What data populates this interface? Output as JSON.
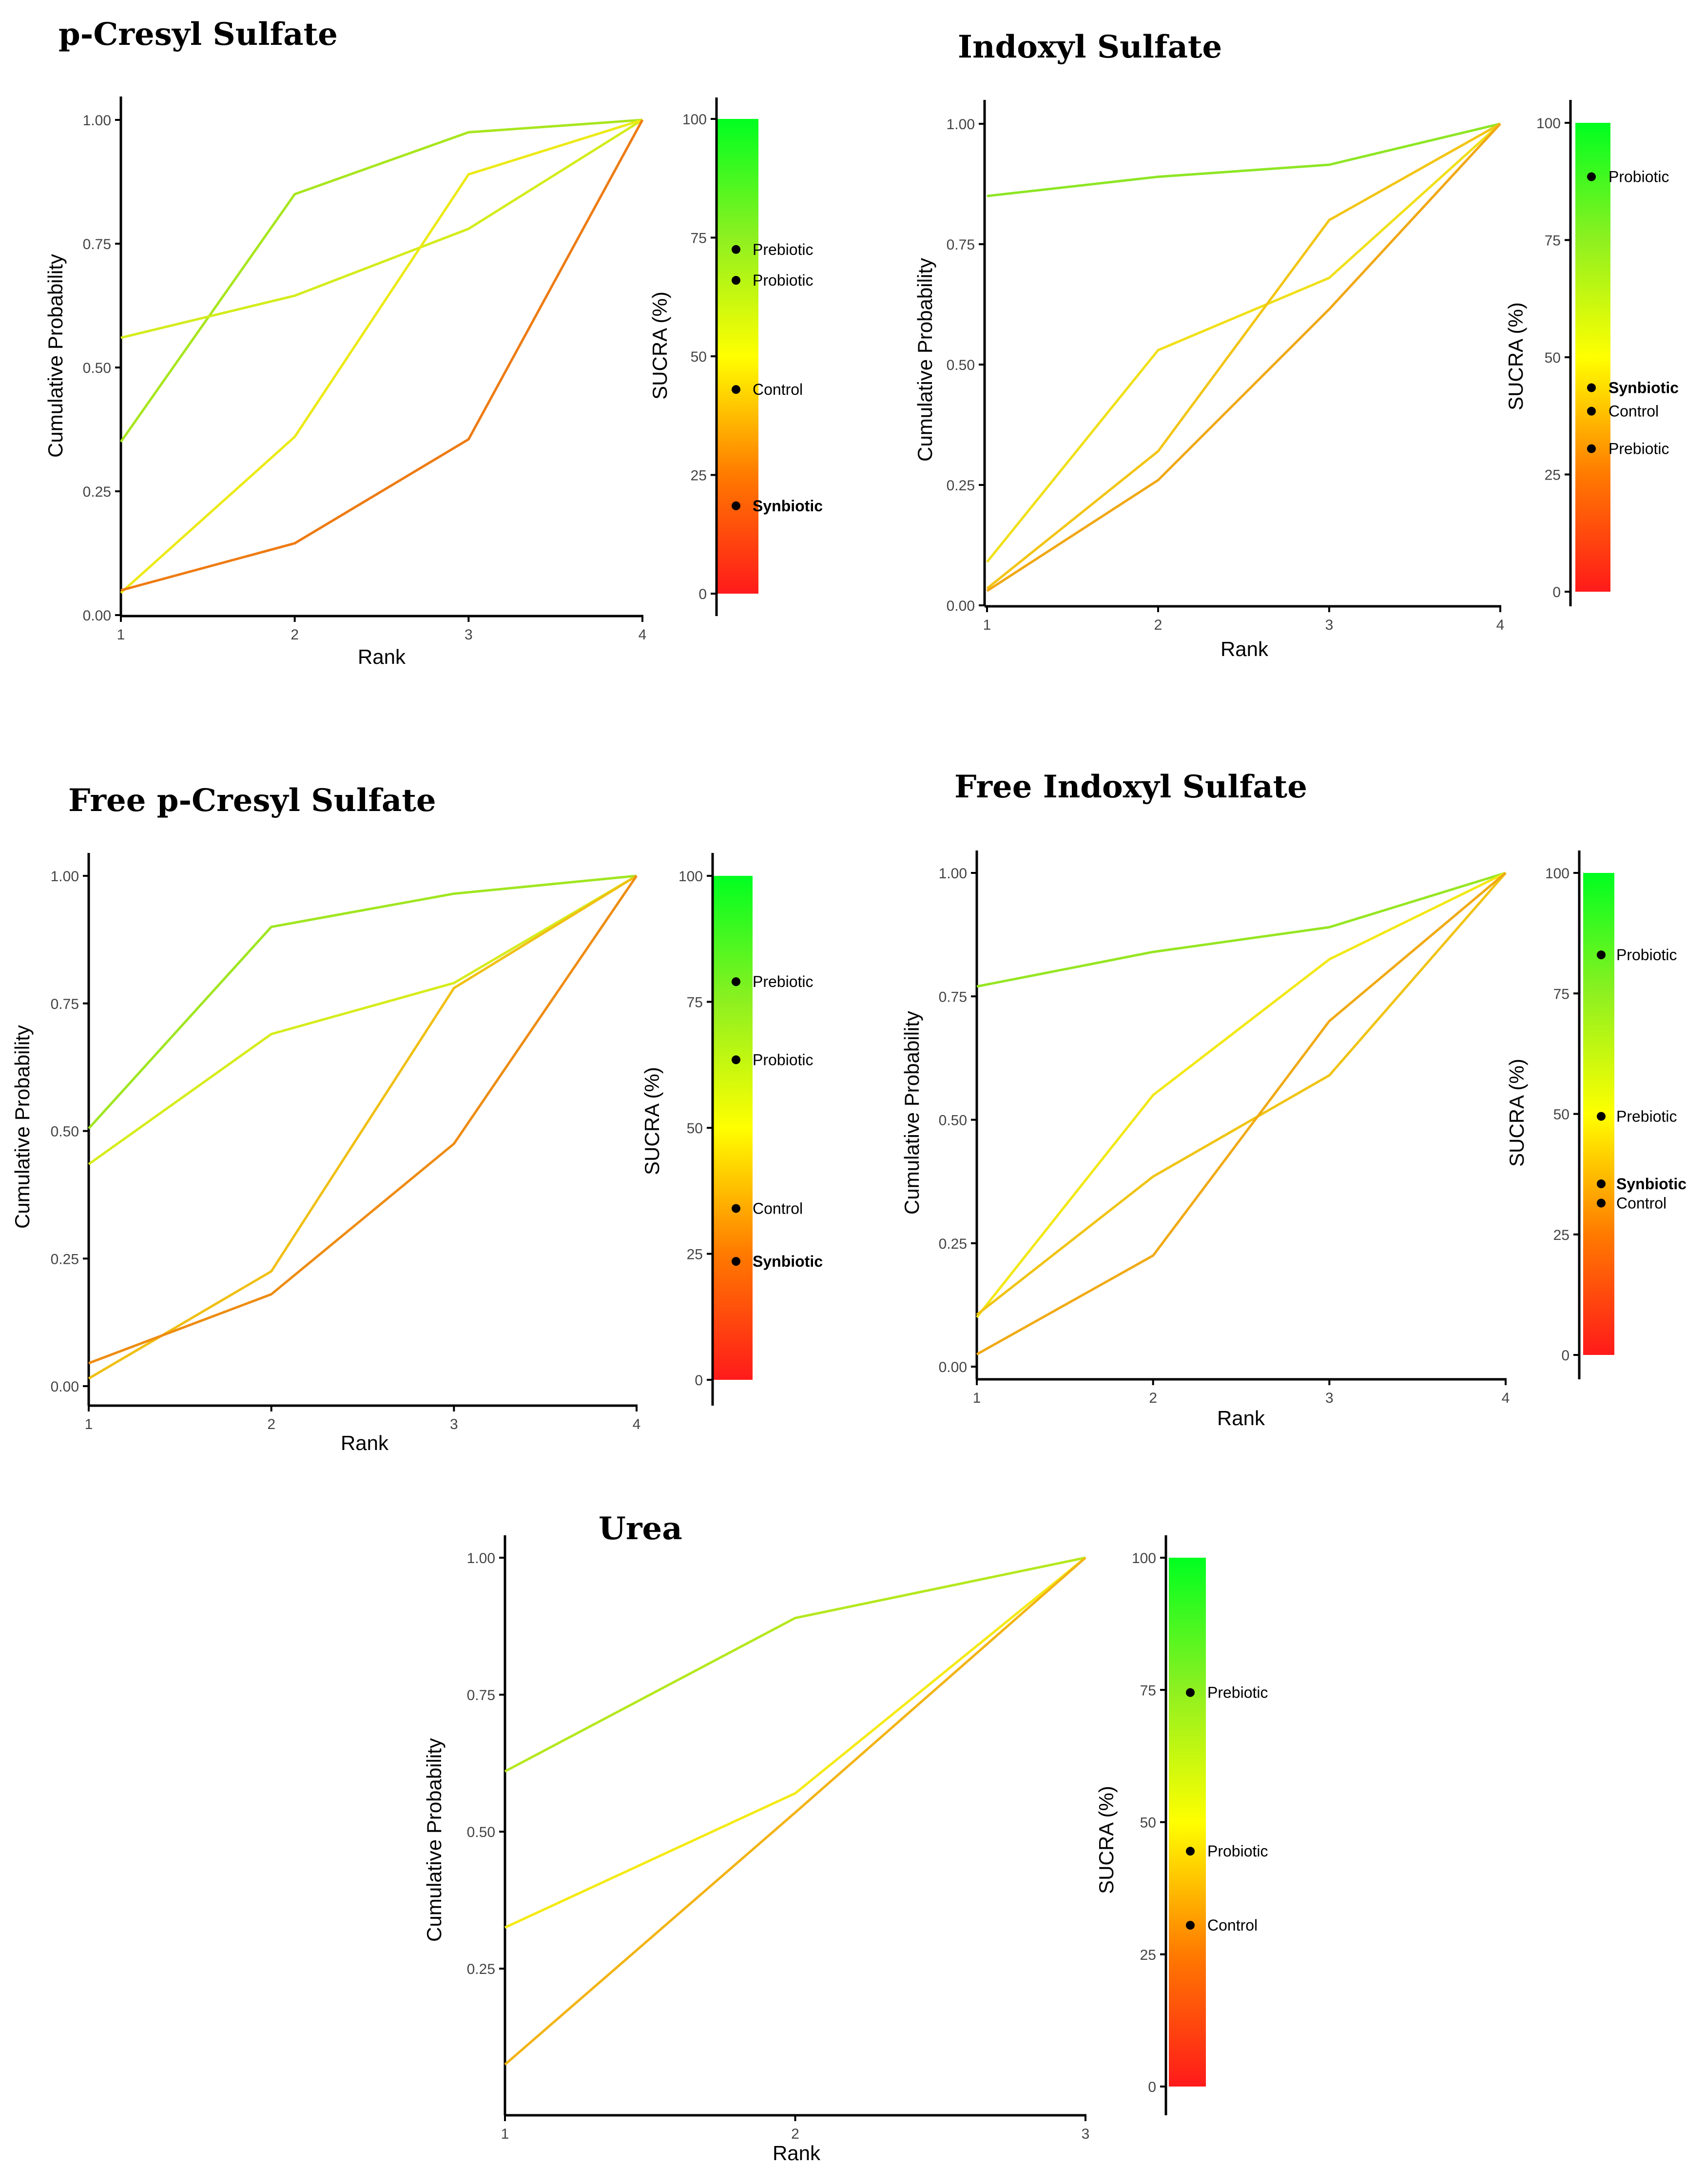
{
  "chart_data": [
    {
      "type": "line",
      "title": "p-Cresyl Sulfate",
      "xlabel": "Rank",
      "ylabel": "Cumulative Probability",
      "x": [
        1,
        2,
        3,
        4
      ],
      "xticks": [
        "1",
        "2",
        "3",
        "4"
      ],
      "yticks": [
        "0.00",
        "0.25",
        "0.50",
        "0.75",
        "1.00"
      ],
      "ylim": [
        0,
        1
      ],
      "series": [
        {
          "color": "#a8e61e",
          "values": [
            0.35,
            0.85,
            0.975,
            1.0
          ]
        },
        {
          "color": "#d4ec1c",
          "values": [
            0.56,
            0.645,
            0.78,
            1.0
          ]
        },
        {
          "color": "#ecea16",
          "values": [
            0.045,
            0.36,
            0.89,
            1.0
          ]
        },
        {
          "color": "#ee7b12",
          "values": [
            0.05,
            0.145,
            0.355,
            1.0
          ]
        }
      ],
      "sucra": {
        "ylabel": "SUCRA (%)",
        "ticks": [
          "0",
          "25",
          "50",
          "75",
          "100"
        ],
        "points": [
          {
            "label": "Prebiotic",
            "value": 72.5,
            "bold": false
          },
          {
            "label": "Probiotic",
            "value": 66,
            "bold": false
          },
          {
            "label": "Control",
            "value": 43,
            "bold": false
          },
          {
            "label": "Synbiotic",
            "value": 18.5,
            "bold": true
          }
        ]
      }
    },
    {
      "type": "line",
      "title": "Indoxyl Sulfate",
      "xlabel": "Rank",
      "ylabel": "Cumulative Probability",
      "x": [
        1,
        2,
        3,
        4
      ],
      "xticks": [
        "1",
        "2",
        "3",
        "4"
      ],
      "yticks": [
        "0.00",
        "0.25",
        "0.50",
        "0.75",
        "1.00"
      ],
      "ylim": [
        0,
        1
      ],
      "series": [
        {
          "color": "#8ee624",
          "values": [
            0.85,
            0.89,
            0.915,
            1.0
          ]
        },
        {
          "color": "#f0e018",
          "values": [
            0.09,
            0.53,
            0.68,
            1.0
          ]
        },
        {
          "color": "#f2c514",
          "values": [
            0.035,
            0.32,
            0.8,
            1.0
          ]
        },
        {
          "color": "#f0a814",
          "values": [
            0.03,
            0.26,
            0.615,
            1.0
          ]
        }
      ],
      "sucra": {
        "ylabel": "SUCRA (%)",
        "ticks": [
          "0",
          "25",
          "50",
          "75",
          "100"
        ],
        "points": [
          {
            "label": "Probiotic",
            "value": 88.5,
            "bold": false
          },
          {
            "label": "Synbiotic",
            "value": 43.5,
            "bold": true
          },
          {
            "label": "Control",
            "value": 38.5,
            "bold": false
          },
          {
            "label": "Prebiotic",
            "value": 30.5,
            "bold": false
          }
        ]
      }
    },
    {
      "type": "line",
      "title": "Free p-Cresyl Sulfate",
      "xlabel": "Rank",
      "ylabel": "Cumulative Probability",
      "x": [
        1,
        2,
        3,
        4
      ],
      "xticks": [
        "1",
        "2",
        "3",
        "4"
      ],
      "yticks": [
        "0.00",
        "0.25",
        "0.50",
        "0.75",
        "1.00"
      ],
      "ylim": [
        0,
        1
      ],
      "series": [
        {
          "color": "#a0e620",
          "values": [
            0.505,
            0.9,
            0.965,
            1.0
          ]
        },
        {
          "color": "#d6ec1c",
          "values": [
            0.435,
            0.69,
            0.79,
            1.0
          ]
        },
        {
          "color": "#f0c014",
          "values": [
            0.015,
            0.225,
            0.78,
            1.0
          ]
        },
        {
          "color": "#ee8c12",
          "values": [
            0.045,
            0.18,
            0.475,
            1.0
          ]
        }
      ],
      "sucra": {
        "ylabel": "SUCRA (%)",
        "ticks": [
          "0",
          "25",
          "50",
          "75",
          "100"
        ],
        "points": [
          {
            "label": "Prebiotic",
            "value": 79,
            "bold": false
          },
          {
            "label": "Probiotic",
            "value": 63.5,
            "bold": false
          },
          {
            "label": "Control",
            "value": 34,
            "bold": false
          },
          {
            "label": "Synbiotic",
            "value": 23.5,
            "bold": true
          }
        ]
      }
    },
    {
      "type": "line",
      "title": "Free Indoxyl Sulfate",
      "xlabel": "Rank",
      "ylabel": "Cumulative Probability",
      "x": [
        1,
        2,
        3,
        4
      ],
      "xticks": [
        "1",
        "2",
        "3",
        "4"
      ],
      "yticks": [
        "0.00",
        "0.25",
        "0.50",
        "0.75",
        "1.00"
      ],
      "ylim": [
        0,
        1
      ],
      "series": [
        {
          "color": "#96e622",
          "values": [
            0.77,
            0.84,
            0.89,
            1.0
          ]
        },
        {
          "color": "#f2e814",
          "values": [
            0.1,
            0.55,
            0.825,
            1.0
          ]
        },
        {
          "color": "#f0c414",
          "values": [
            0.105,
            0.385,
            0.59,
            1.0
          ]
        },
        {
          "color": "#f0aa14",
          "values": [
            0.025,
            0.225,
            0.7,
            1.0
          ]
        }
      ],
      "sucra": {
        "ylabel": "SUCRA (%)",
        "ticks": [
          "0",
          "25",
          "50",
          "75",
          "100"
        ],
        "points": [
          {
            "label": "Probiotic",
            "value": 83,
            "bold": false
          },
          {
            "label": "Prebiotic",
            "value": 49.5,
            "bold": false
          },
          {
            "label": "Synbiotic",
            "value": 35.5,
            "bold": true
          },
          {
            "label": "Control",
            "value": 31.5,
            "bold": false
          }
        ]
      }
    },
    {
      "type": "line",
      "title": "Urea",
      "xlabel": "Rank",
      "ylabel": "Cumulative Probability",
      "x": [
        1,
        2,
        3
      ],
      "xticks": [
        "1",
        "2",
        "3"
      ],
      "yticks": [
        "0.25",
        "0.50",
        "0.75",
        "1.00"
      ],
      "ylim": [
        0.05,
        1
      ],
      "series": [
        {
          "color": "#b4e81e",
          "values": [
            0.61,
            0.89,
            1.0
          ]
        },
        {
          "color": "#f4ea14",
          "values": [
            0.325,
            0.57,
            1.0
          ]
        },
        {
          "color": "#f2b414",
          "values": [
            0.075,
            0.535,
            1.0
          ]
        }
      ],
      "sucra": {
        "ylabel": "SUCRA (%)",
        "ticks": [
          "0",
          "25",
          "50",
          "75",
          "100"
        ],
        "points": [
          {
            "label": "Prebiotic",
            "value": 74.5,
            "bold": false
          },
          {
            "label": "Probiotic",
            "value": 44.5,
            "bold": false
          },
          {
            "label": "Control",
            "value": 30.5,
            "bold": false
          }
        ]
      }
    }
  ]
}
